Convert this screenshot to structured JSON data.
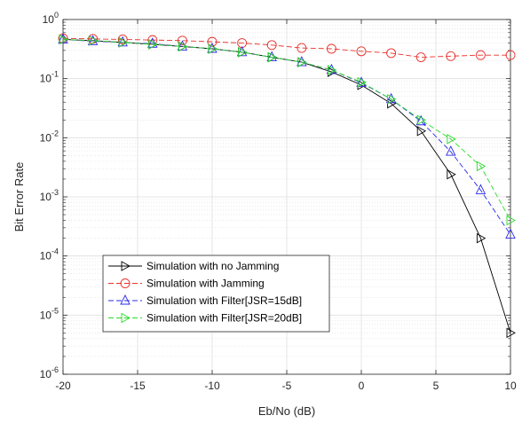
{
  "chart_data": {
    "type": "line",
    "title": "",
    "xlabel": "Eb/No (dB)",
    "ylabel": "Bit Error Rate",
    "xlim": [
      -20,
      10
    ],
    "ylim": [
      1e-06,
      1
    ],
    "yscale": "log",
    "grid": true,
    "minor_grid": true,
    "legend_position": "lower-left",
    "x_ticks": [
      "-20",
      "-15",
      "-10",
      "-5",
      "0",
      "5",
      "10"
    ],
    "y_ticks": [
      {
        "base": "10",
        "exp": "0"
      },
      {
        "base": "10",
        "exp": "-1"
      },
      {
        "base": "10",
        "exp": "-2"
      },
      {
        "base": "10",
        "exp": "-3"
      },
      {
        "base": "10",
        "exp": "-4"
      },
      {
        "base": "10",
        "exp": "-5"
      },
      {
        "base": "10",
        "exp": "-6"
      }
    ],
    "x": [
      -20,
      -18,
      -16,
      -14,
      -12,
      -10,
      -8,
      -6,
      -4,
      -2,
      0,
      2,
      4,
      6,
      8,
      10
    ],
    "series": [
      {
        "name": "Simulation with no Jamming",
        "color": "#000000",
        "line_style": "solid",
        "marker": "triangle-right",
        "values": [
          0.46,
          0.44,
          0.41,
          0.38,
          0.35,
          0.32,
          0.28,
          0.23,
          0.19,
          0.13,
          0.078,
          0.038,
          0.013,
          0.0024,
          0.0002,
          5e-06
        ]
      },
      {
        "name": "Simulation with Jamming",
        "color": "#e8312b",
        "line_style": "dashed",
        "marker": "circle",
        "values": [
          0.48,
          0.47,
          0.46,
          0.45,
          0.44,
          0.42,
          0.4,
          0.37,
          0.33,
          0.32,
          0.29,
          0.27,
          0.23,
          0.24,
          0.25,
          0.25
        ]
      },
      {
        "name": "Simulation with Filter[JSR=15dB]",
        "color": "#2a2ae8",
        "line_style": "dashed",
        "marker": "triangle-up",
        "values": [
          0.46,
          0.43,
          0.41,
          0.39,
          0.35,
          0.32,
          0.28,
          0.23,
          0.19,
          0.14,
          0.085,
          0.045,
          0.019,
          0.0058,
          0.0013,
          0.00023
        ]
      },
      {
        "name": "Simulation with Filter[JSR=20dB]",
        "color": "#2bdb2b",
        "line_style": "dashed",
        "marker": "triangle-right",
        "values": [
          0.46,
          0.44,
          0.41,
          0.38,
          0.35,
          0.32,
          0.28,
          0.23,
          0.19,
          0.14,
          0.087,
          0.045,
          0.02,
          0.0095,
          0.0033,
          0.0004
        ]
      }
    ]
  }
}
